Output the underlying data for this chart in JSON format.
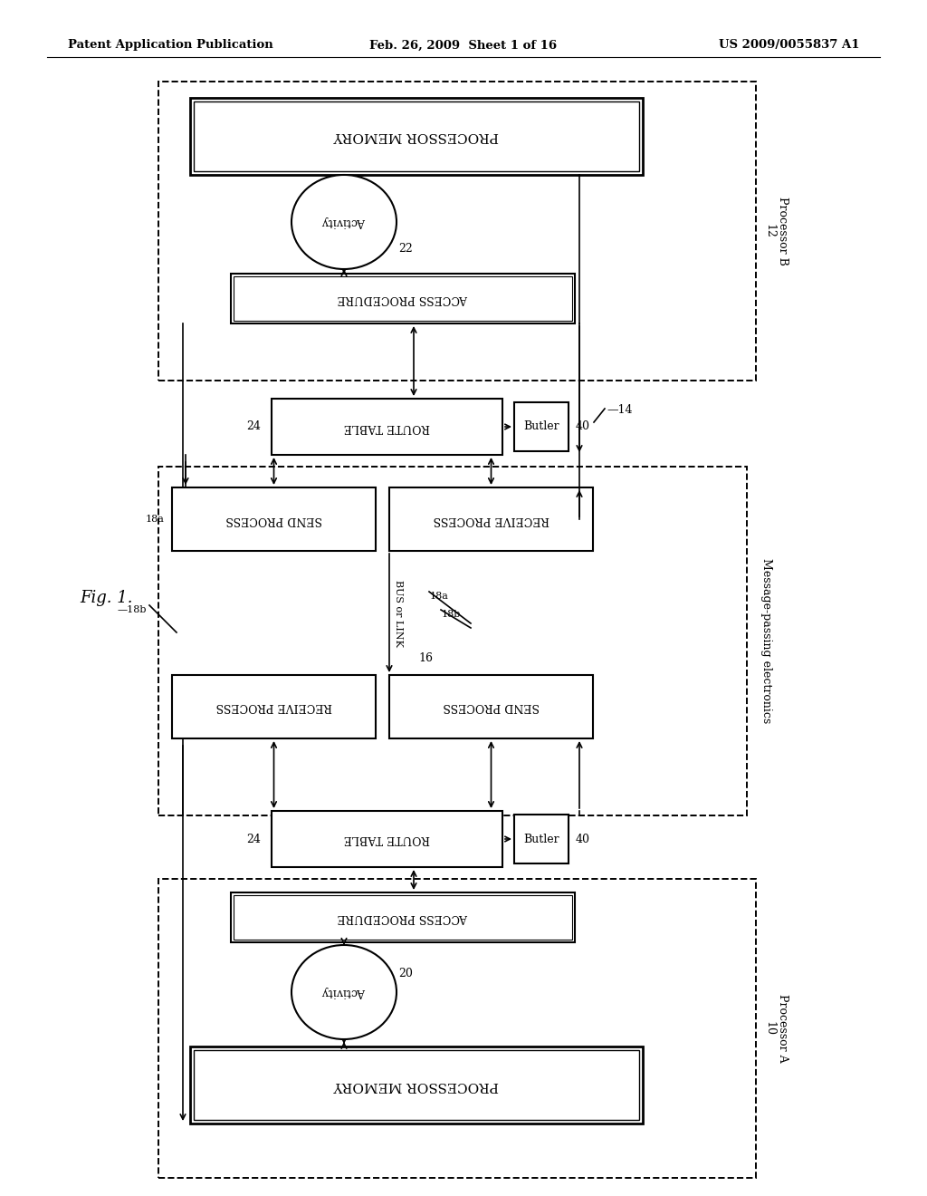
{
  "title_left": "Patent Application Publication",
  "title_center": "Feb. 26, 2009  Sheet 1 of 16",
  "title_right": "US 2009/0055837 A1",
  "fig_label": "Fig. 1.",
  "background_color": "#ffffff"
}
